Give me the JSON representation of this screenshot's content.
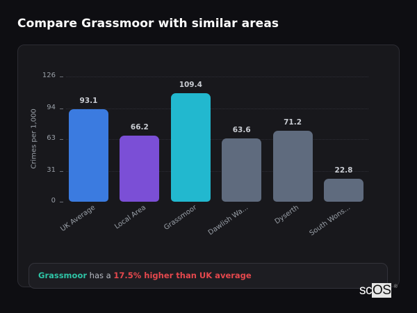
{
  "page": {
    "title": "Compare Grassmoor with similar areas"
  },
  "chart_data": {
    "type": "bar",
    "title": "Compare Grassmoor with similar areas",
    "xlabel": "",
    "ylabel": "Crimes per 1,000",
    "ylim": [
      0,
      126
    ],
    "yticks": [
      0,
      31,
      63,
      94,
      126
    ],
    "grid": true,
    "legend": "none",
    "categories": [
      "UK Average",
      "Local Area",
      "Grassmoor",
      "Dawlish Wa...",
      "Dyserth",
      "South Wons..."
    ],
    "values": [
      93.1,
      66.2,
      109.4,
      63.6,
      71.2,
      22.8
    ],
    "value_labels": [
      "93.1",
      "66.2",
      "109.4",
      "63.6",
      "71.2",
      "22.8"
    ],
    "colors": [
      "#3b7be0",
      "#7b4fd6",
      "#22b8cf",
      "#5f6b7e",
      "#5f6b7e",
      "#5f6b7e"
    ]
  },
  "info": {
    "area_name": "Grassmoor",
    "connector": " has a ",
    "comparison": "17.5% higher than UK average"
  },
  "watermark": {
    "prefix": "sc",
    "boxed": "OS",
    "reg": "®"
  },
  "colors": {
    "background": "#0e0e12",
    "card": "#18181c",
    "accent_area": "#2ec4a6",
    "accent_warning": "#e5484d"
  }
}
